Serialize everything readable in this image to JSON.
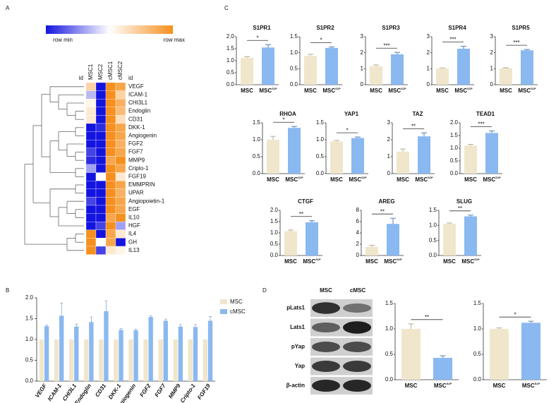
{
  "chart_data": [
    {
      "panel": "A",
      "type": "heatmap",
      "scale_labels": [
        "row min",
        "row max"
      ],
      "colors": [
        "#1414e0",
        "#ffffff",
        "#f5901e"
      ],
      "id_label": "id",
      "columns": [
        "MSC1",
        "MSC2",
        "cMSC1",
        "cMSC2"
      ],
      "rows": [
        "VEGF",
        "ICAM-1",
        "CHI3L1",
        "Endoglin",
        "CD31",
        "DKK-1",
        "Angiogenin",
        "FGF2",
        "FGF7",
        "MMP9",
        "Cripto-1",
        "FGF19",
        "EMMPRIN",
        "UPAR",
        "Angiopoietin-1",
        "EGF",
        "IL10",
        "HGF",
        "IL4",
        "GH",
        "IL13"
      ],
      "values": [
        [
          0.7,
          0,
          1,
          0.9
        ],
        [
          0.35,
          0,
          1,
          0.7
        ],
        [
          0.55,
          0,
          1,
          0.85
        ],
        [
          0.6,
          0,
          1,
          0.8
        ],
        [
          0.6,
          0,
          1,
          0.65
        ],
        [
          0,
          0.05,
          1,
          0.9
        ],
        [
          0,
          0,
          1,
          0.9
        ],
        [
          0,
          0,
          1,
          0.85
        ],
        [
          0.1,
          0,
          1,
          0.9
        ],
        [
          0.05,
          0,
          0.9,
          1
        ],
        [
          0.3,
          0,
          1,
          0.9
        ],
        [
          0,
          0.5,
          1,
          0.6
        ],
        [
          0,
          0,
          1,
          0.9
        ],
        [
          0,
          0,
          1,
          0.85
        ],
        [
          0.1,
          0,
          1,
          0.9
        ],
        [
          0,
          0,
          1,
          0.9
        ],
        [
          0,
          0,
          0.9,
          1
        ],
        [
          0,
          0.1,
          1,
          0.3
        ],
        [
          1,
          0,
          0.9,
          0.6
        ],
        [
          1,
          0.5,
          0.9,
          0
        ],
        [
          1,
          0.1,
          0.6,
          0.55
        ]
      ]
    },
    {
      "panel": "B",
      "type": "bar",
      "legend": "upper right",
      "categories": [
        "VEGF",
        "ICAM-1",
        "CHI3L1",
        "Endoglin",
        "CD31",
        "DKK-1",
        "Angiogenin",
        "FGF2",
        "FGF7",
        "MMP9",
        "Cripto-1",
        "FGF19"
      ],
      "series": [
        {
          "name": "MSC",
          "color": "#efe6cc",
          "values": [
            1,
            1,
            1,
            1,
            1,
            1,
            1,
            1,
            1,
            1,
            1,
            1
          ]
        },
        {
          "name": "cMSC",
          "color": "#8ab8f0",
          "values": [
            1.32,
            1.57,
            1.31,
            1.42,
            1.68,
            1.23,
            1.22,
            1.54,
            1.45,
            1.31,
            1.3,
            1.45
          ],
          "errors": [
            0.03,
            0.3,
            0.06,
            0.12,
            0.25,
            0.03,
            0.03,
            0.03,
            0.04,
            0.05,
            0.06,
            0.1
          ]
        }
      ],
      "ylim": [
        0,
        2
      ],
      "yticks": [
        {
          "value": 0,
          "label": "0.0"
        },
        {
          "value": 0.5,
          "label": "0.5"
        },
        {
          "value": 1,
          "label": "1.0"
        },
        {
          "value": 1.5,
          "label": "1.5"
        },
        {
          "value": 2,
          "label": "2.0"
        }
      ]
    },
    {
      "panel": "C",
      "type": "bar-grid",
      "colors": [
        "#efe6cc",
        "#8ab8f0"
      ],
      "charts": [
        {
          "title": "S1PR1",
          "categories": [
            "MSC",
            "MSC"
          ],
          "superscript": "S1P",
          "values": [
            1.12,
            1.55
          ],
          "errors": [
            0.05,
            0.12
          ],
          "significance": "*",
          "ylim": [
            0,
            2
          ],
          "yticks": [
            {
              "value": 0,
              "label": "0.0"
            },
            {
              "value": 0.5,
              "label": "0.5"
            },
            {
              "value": 1,
              "label": "1.0"
            },
            {
              "value": 1.5,
              "label": "1.5"
            },
            {
              "value": 2,
              "label": "2.0"
            }
          ]
        },
        {
          "title": "S1PR2",
          "categories": [
            "MSC",
            "MSC"
          ],
          "superscript": "S1P",
          "values": [
            0.9,
            1.15
          ],
          "errors": [
            0.05,
            0.03
          ],
          "significance": "*",
          "ylim": [
            0,
            1.5
          ],
          "yticks": [
            {
              "value": 0,
              "label": "0.0"
            },
            {
              "value": 0.5,
              "label": "0.5"
            },
            {
              "value": 1,
              "label": "1.0"
            },
            {
              "value": 1.5,
              "label": "1.5"
            }
          ]
        },
        {
          "title": "S1PR3",
          "categories": [
            "MSC",
            "MSC"
          ],
          "superscript": "S1P",
          "values": [
            1.15,
            1.9
          ],
          "errors": [
            0.08,
            0.12
          ],
          "significance": "***",
          "ylim": [
            0,
            3
          ],
          "yticks": [
            0,
            1,
            2,
            3
          ]
        },
        {
          "title": "S1PR4",
          "categories": [
            "MSC",
            "MSC"
          ],
          "superscript": "S1P",
          "values": [
            1.02,
            2.25
          ],
          "errors": [
            0.03,
            0.15
          ],
          "significance": "***",
          "ylim": [
            0,
            3
          ],
          "yticks": [
            0,
            1,
            2,
            3
          ]
        },
        {
          "title": "S1PR5",
          "categories": [
            "MSC",
            "MSC"
          ],
          "superscript": "S1P",
          "values": [
            1.03,
            2.15
          ],
          "errors": [
            0.03,
            0.05
          ],
          "significance": "***",
          "ylim": [
            0,
            3
          ],
          "yticks": [
            0,
            1,
            2,
            3
          ]
        },
        {
          "title": "RHOA",
          "categories": [
            "MSC",
            "MSC"
          ],
          "superscript": "S1P",
          "values": [
            1,
            1.35
          ],
          "errors": [
            0.1,
            0.04
          ],
          "significance": "*",
          "ylim": [
            0,
            1.5
          ],
          "yticks": [
            {
              "value": 0,
              "label": "0.0"
            },
            {
              "value": 0.5,
              "label": "0.5"
            },
            {
              "value": 1,
              "label": "1.0"
            },
            {
              "value": 1.5,
              "label": "1.5"
            }
          ]
        },
        {
          "title": "YAP1",
          "categories": [
            "MSC",
            "MSC"
          ],
          "superscript": "S1P",
          "values": [
            0.95,
            1.05
          ],
          "errors": [
            0.03,
            0.03
          ],
          "significance": "*",
          "ylim": [
            0,
            1.5
          ],
          "yticks": [
            {
              "value": 0,
              "label": "0.0"
            },
            {
              "value": 0.5,
              "label": "0.5"
            },
            {
              "value": 1,
              "label": "1.0"
            },
            {
              "value": 1.5,
              "label": "1.5"
            }
          ]
        },
        {
          "title": "TAZ",
          "categories": [
            "MSC",
            "MSC"
          ],
          "superscript": "S1P",
          "values": [
            1.3,
            2.2
          ],
          "errors": [
            0.15,
            0.2
          ],
          "significance": "**",
          "ylim": [
            0,
            3
          ],
          "yticks": [
            0,
            1,
            2,
            3
          ]
        },
        {
          "title": "TEAD1",
          "categories": [
            "MSC",
            "MSC"
          ],
          "superscript": "S1P",
          "values": [
            1.1,
            1.6
          ],
          "errors": [
            0.05,
            0.08
          ],
          "significance": "***",
          "ylim": [
            0,
            2
          ],
          "yticks": [
            {
              "value": 0,
              "label": "0.0"
            },
            {
              "value": 0.5,
              "label": "0.5"
            },
            {
              "value": 1,
              "label": "1.0"
            },
            {
              "value": 1.5,
              "label": "1.5"
            },
            {
              "value": 2,
              "label": "2.0"
            }
          ]
        },
        {
          "title": "CTGF",
          "categories": [
            "MSC",
            "MSC"
          ],
          "superscript": "S1P",
          "values": [
            1.08,
            1.47
          ],
          "errors": [
            0.05,
            0.07
          ],
          "significance": "**",
          "ylim": [
            0,
            2
          ],
          "yticks": [
            {
              "value": 0,
              "label": "0.0"
            },
            {
              "value": 0.5,
              "label": "0.5"
            },
            {
              "value": 1,
              "label": "1.0"
            },
            {
              "value": 1.5,
              "label": "1.5"
            },
            {
              "value": 2,
              "label": "2.0"
            }
          ]
        },
        {
          "title": "AREG",
          "categories": [
            "MSC",
            "MSC"
          ],
          "superscript": "S1P",
          "values": [
            1.5,
            5.6
          ],
          "errors": [
            0.3,
            1
          ],
          "significance": "**",
          "ylim": [
            0,
            8
          ],
          "yticks": [
            0,
            2,
            4,
            6,
            8
          ]
        },
        {
          "title": "SLUG",
          "categories": [
            "MSC",
            "MSC"
          ],
          "superscript": "S1P",
          "values": [
            1.05,
            1.3
          ],
          "errors": [
            0.03,
            0.04
          ],
          "significance": "**",
          "ylim": [
            0,
            1.5
          ],
          "yticks": [
            {
              "value": 0,
              "label": "0.0"
            },
            {
              "value": 0.5,
              "label": "0.5"
            },
            {
              "value": 1,
              "label": "1.0"
            },
            {
              "value": 1.5,
              "label": "1.5"
            }
          ]
        }
      ]
    },
    {
      "panel": "D",
      "type": "blot-bars",
      "colors": [
        "#efe6cc",
        "#8ab8f0"
      ],
      "blot": {
        "columns": [
          "MSC",
          "cMSC"
        ],
        "rows": [
          "pLats1",
          "Lats1",
          "pYap",
          "Yap",
          "β-actin"
        ]
      },
      "charts": [
        {
          "categories": [
            "MSC",
            "MSC"
          ],
          "superscript": "S1P",
          "values": [
            1,
            0.43
          ],
          "errors": [
            0.1,
            0.04
          ],
          "significance": "**",
          "ylim": [
            0,
            1.5
          ],
          "yticks": [
            {
              "value": 0,
              "label": "0.0"
            },
            {
              "value": 0.5,
              "label": "0.5"
            },
            {
              "value": 1,
              "label": "1.0"
            },
            {
              "value": 1.5,
              "label": "1.5"
            }
          ]
        },
        {
          "categories": [
            "MSC",
            "MSC"
          ],
          "superscript": "S1P",
          "values": [
            1,
            1.12
          ],
          "errors": [
            0.02,
            0.03
          ],
          "significance": "*",
          "ylim": [
            0,
            1.5
          ],
          "yticks": [
            {
              "value": 0,
              "label": "0.0"
            },
            {
              "value": 0.5,
              "label": "0.5"
            },
            {
              "value": 1,
              "label": "1.0"
            },
            {
              "value": 1.5,
              "label": "1.5"
            }
          ]
        }
      ]
    }
  ]
}
